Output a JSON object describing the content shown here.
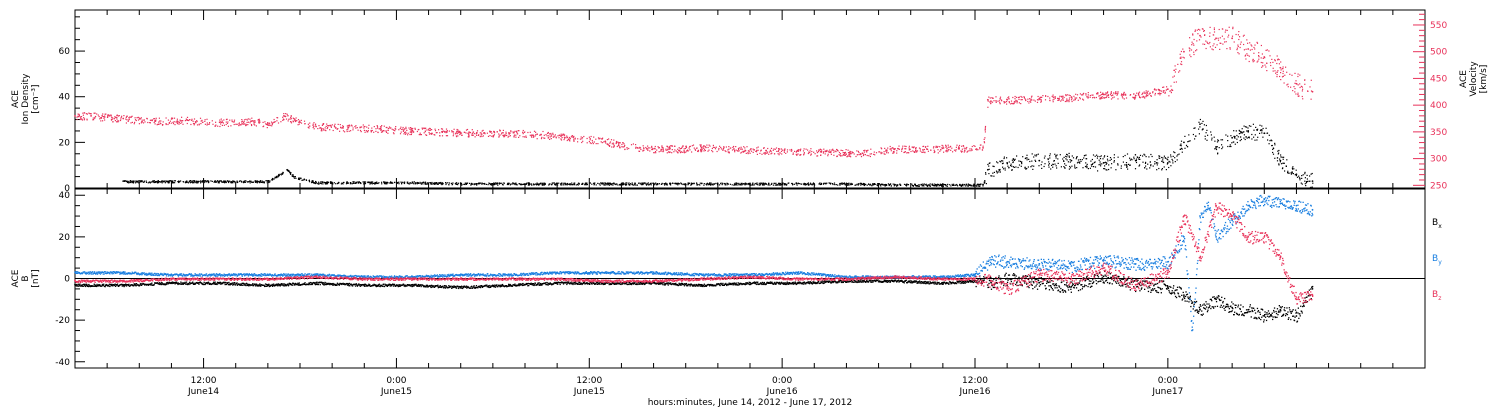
{
  "chart_data": [
    {
      "panel": "plasma",
      "type": "scatter",
      "ylabel_lines": [
        "ACE",
        "Ion Density",
        "[cm⁻³]"
      ],
      "ylim": [
        0,
        78
      ],
      "yticks": [
        0,
        20,
        40,
        60
      ],
      "y2label_lines": [
        "ACE",
        "Velocity",
        "[km/s]"
      ],
      "y2lim": [
        245,
        578
      ],
      "y2ticks": [
        250,
        300,
        350,
        400,
        450,
        500,
        550
      ],
      "series": [
        {
          "color": "#000000",
          "axis": "left",
          "x": [
            3,
            6,
            9,
            12,
            13.2,
            13.6,
            15,
            18,
            21,
            24,
            27,
            30,
            33,
            36,
            39,
            42,
            45,
            48,
            51,
            54,
            56.5,
            56.8,
            58,
            60,
            62,
            64,
            66,
            68,
            69,
            70,
            71,
            72,
            73,
            74,
            75,
            76,
            77
          ],
          "y": [
            3,
            3,
            3,
            3,
            8,
            5,
            2.5,
            2.5,
            2.5,
            2,
            2,
            2,
            2,
            2,
            2,
            2,
            2,
            2,
            1.5,
            1.5,
            1.5,
            8,
            11,
            12,
            12,
            11,
            12,
            11,
            20,
            28,
            18,
            22,
            25,
            24,
            12,
            6,
            3
          ]
        },
        {
          "color": "#e8325a",
          "axis": "right",
          "x": [
            0,
            1,
            3,
            5,
            7,
            9,
            11,
            12,
            13,
            14,
            15,
            17,
            19,
            21,
            23,
            25,
            27,
            29,
            31,
            33,
            35,
            37,
            39,
            41,
            43,
            45,
            47,
            49,
            51,
            53,
            55,
            56.5,
            56.8,
            58,
            60,
            62,
            64,
            66,
            68,
            69,
            70,
            71,
            72,
            73,
            74,
            75,
            76,
            77
          ],
          "y": [
            380,
            380,
            375,
            370,
            372,
            368,
            370,
            365,
            380,
            368,
            360,
            358,
            356,
            352,
            350,
            348,
            348,
            345,
            340,
            332,
            320,
            318,
            320,
            318,
            315,
            314,
            312,
            310,
            318,
            318,
            320,
            320,
            410,
            410,
            412,
            415,
            420,
            418,
            430,
            500,
            530,
            525,
            525,
            505,
            490,
            470,
            440,
            425
          ]
        }
      ]
    },
    {
      "panel": "magnetic",
      "type": "line",
      "ylabel_lines": [
        "ACE",
        "B",
        "[nT]"
      ],
      "ylim": [
        -43,
        43
      ],
      "yticks": [
        -40,
        -20,
        0,
        20,
        40
      ],
      "series": [
        {
          "name": "B_x",
          "color": "#000000",
          "x": [
            0,
            3,
            6,
            9,
            12,
            15,
            18,
            21,
            24,
            27,
            30,
            33,
            36,
            39,
            42,
            45,
            48,
            51,
            54,
            56,
            57,
            58,
            60,
            62,
            64,
            66,
            68,
            69,
            70,
            71,
            72,
            73,
            74,
            75,
            76,
            77
          ],
          "y": [
            -3,
            -3,
            -2,
            -2,
            -3,
            -2,
            -3,
            -3,
            -4,
            -3,
            -2,
            -2,
            -2,
            -3,
            -2,
            -2,
            -1,
            -1,
            -2,
            -1,
            -2,
            0,
            -2,
            -4,
            1,
            -3,
            -4,
            -8,
            -15,
            -10,
            -14,
            -15,
            -18,
            -15,
            -18,
            -5
          ]
        },
        {
          "name": "B_y",
          "color": "#1a7fe0",
          "x": [
            0,
            3,
            6,
            9,
            12,
            15,
            18,
            21,
            24,
            27,
            30,
            33,
            36,
            39,
            42,
            45,
            48,
            51,
            54,
            56,
            57,
            58,
            60,
            62,
            64,
            66,
            68,
            69,
            69.5,
            70,
            70.5,
            71,
            72,
            73,
            74,
            75,
            76,
            77
          ],
          "y": [
            3,
            3,
            2,
            2,
            2,
            2,
            1,
            1,
            2,
            2,
            3,
            3,
            3,
            2,
            2,
            3,
            1,
            1,
            1,
            2,
            9,
            8,
            7,
            6,
            9,
            7,
            8,
            20,
            -25,
            30,
            35,
            20,
            28,
            35,
            38,
            36,
            35,
            33
          ]
        },
        {
          "name": "B_z",
          "color": "#e8325a",
          "x": [
            0,
            3,
            6,
            9,
            12,
            15,
            18,
            21,
            24,
            27,
            30,
            33,
            36,
            39,
            42,
            45,
            48,
            51,
            54,
            56,
            57,
            58,
            60,
            62,
            64,
            66,
            68,
            69,
            70,
            71,
            72,
            73,
            74,
            75,
            76,
            77
          ],
          "y": [
            -1,
            -1,
            0,
            0,
            0,
            1,
            0,
            0,
            0,
            0,
            0,
            -1,
            -1,
            0,
            1,
            0,
            0,
            1,
            0,
            0,
            -1,
            -5,
            2,
            0,
            5,
            -3,
            3,
            30,
            10,
            35,
            30,
            20,
            20,
            10,
            -10,
            -8
          ]
        }
      ],
      "legend": [
        {
          "base": "B",
          "sub": "x",
          "color": "#000000"
        },
        {
          "base": "B",
          "sub": "y",
          "color": "#1a7fe0"
        },
        {
          "base": "B",
          "sub": "z",
          "color": "#e8325a"
        }
      ]
    }
  ],
  "xaxis": {
    "range_hours": [
      0,
      84
    ],
    "title": "hours:minutes, June 14, 2012 - June 17, 2012",
    "major_ticks": [
      {
        "h": 8,
        "line1": "12:00",
        "line2": "June14"
      },
      {
        "h": 20,
        "line1": "0:00",
        "line2": "June15"
      },
      {
        "h": 32,
        "line1": "12:00",
        "line2": "June15"
      },
      {
        "h": 44,
        "line1": "0:00",
        "line2": "June16"
      },
      {
        "h": 56,
        "line1": "12:00",
        "line2": "June16"
      },
      {
        "h": 68,
        "line1": "0:00",
        "line2": "June17"
      }
    ]
  }
}
